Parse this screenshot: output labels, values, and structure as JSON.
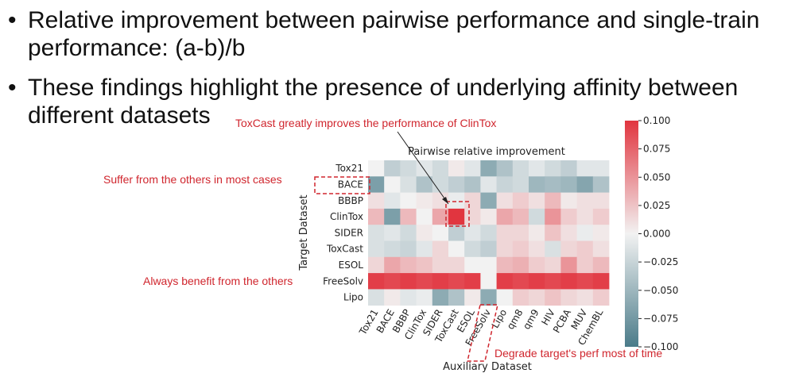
{
  "bullets": [
    {
      "text": "Relative improvement between pairwise performance and single-train performance: (a-b)/b"
    },
    {
      "text": "These findings highlight the presence of underlying affinity between different datasets"
    }
  ],
  "annotations": {
    "toxcast": "ToxCast greatly improves the performance of ClinTox",
    "bace": "Suffer from the others in most cases",
    "freesolv": "Always benefit from the others",
    "degrade": "Degrade target's perf most of time"
  },
  "colors": {
    "positive": "#e1353f",
    "negative": "#4a7b89",
    "neutral": "#f2f2f2",
    "annotation": "#d0262e"
  },
  "chart_data": {
    "type": "heatmap",
    "title": "Pairwise relative improvement",
    "xlabel": "Auxiliary Dataset",
    "ylabel": "Target Dataset",
    "x": [
      "Tox21",
      "BACE",
      "BBBP",
      "ClinTox",
      "SIDER",
      "ToxCast",
      "ESOL",
      "FreeSolv",
      "Lipo",
      "qm8",
      "qm9",
      "HIV",
      "PCBA",
      "MUV",
      "ChemBL"
    ],
    "y": [
      "Tox21",
      "BACE",
      "BBBP",
      "ClinTox",
      "SIDER",
      "ToxCast",
      "ESOL",
      "FreeSolv",
      "Lipo"
    ],
    "values": [
      [
        0,
        -0.03,
        -0.02,
        -0.01,
        -0.02,
        0.005,
        -0.01,
        -0.06,
        -0.04,
        -0.02,
        -0.01,
        -0.02,
        -0.03,
        -0.01,
        -0.01
      ],
      [
        -0.07,
        0,
        -0.015,
        -0.04,
        -0.02,
        -0.03,
        -0.04,
        -0.01,
        -0.025,
        -0.02,
        -0.05,
        -0.045,
        -0.05,
        -0.065,
        -0.04
      ],
      [
        0.01,
        -0.01,
        0,
        0.005,
        0.01,
        -0.005,
        0.015,
        -0.06,
        0.01,
        0.02,
        0.01,
        0.03,
        0.005,
        0.01,
        0.01
      ],
      [
        0.03,
        -0.07,
        0.03,
        0,
        0.04,
        0.1,
        0.015,
        0.005,
        0.04,
        0.03,
        -0.02,
        0.05,
        0.02,
        0.01,
        0.02
      ],
      [
        -0.015,
        -0.01,
        -0.02,
        0.005,
        0,
        -0.03,
        -0.01,
        -0.02,
        0.015,
        0.015,
        0.005,
        0.025,
        0.01,
        -0.005,
        0.005
      ],
      [
        -0.015,
        -0.02,
        -0.025,
        -0.01,
        0.015,
        0,
        -0.02,
        -0.03,
        0.015,
        0.02,
        0.01,
        -0.015,
        0.015,
        0.02,
        0.01
      ],
      [
        0.015,
        0.04,
        0.03,
        0.025,
        0.015,
        0.015,
        0,
        0,
        0.03,
        0.035,
        0.02,
        0.015,
        0.05,
        0.02,
        0.03
      ],
      [
        0.095,
        0.09,
        0.095,
        0.09,
        0.095,
        0.09,
        0.095,
        0,
        0.095,
        0.09,
        0.095,
        0.09,
        0.095,
        0.09,
        0.095
      ],
      [
        -0.015,
        0.005,
        -0.01,
        -0.005,
        -0.06,
        -0.04,
        0.005,
        -0.06,
        0,
        0.02,
        0.015,
        0.025,
        0.015,
        0.01,
        0.02
      ]
    ],
    "colorbar": {
      "min": -0.1,
      "max": 0.1,
      "ticks": [
        "0.100",
        "0.075",
        "0.050",
        "0.025",
        "0.000",
        "−0.025",
        "−0.050",
        "−0.075",
        "−0.100"
      ]
    }
  }
}
